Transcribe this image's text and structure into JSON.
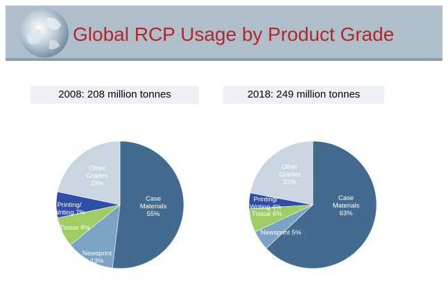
{
  "header": {
    "title": "Global RCP Usage by Product Grade",
    "background": "#aebfca",
    "title_color": "#b0282a"
  },
  "globe_icon": "globe-icon",
  "chart_data": [
    {
      "type": "pie",
      "title": "2008: 208 million tonnes",
      "slices": [
        {
          "label": "Case Materials",
          "value": 55,
          "display": "55%",
          "color": "#436a8f"
        },
        {
          "label": "Newsprint",
          "value": 13,
          "display": "13%",
          "color": "#7ba3c6"
        },
        {
          "label": "Tissue",
          "value": 8,
          "display": "8%",
          "color": "#9fcc64"
        },
        {
          "label": "Printing/ Writing",
          "value": 7,
          "display": "7%",
          "color": "#2f4ea7"
        },
        {
          "label": "Other Grades",
          "value": 23,
          "display": "23%",
          "color": "#c9d6e2"
        }
      ]
    },
    {
      "type": "pie",
      "title": "2018: 249 million tonnes",
      "slices": [
        {
          "label": "Case Materials",
          "value": 63,
          "display": "63%",
          "color": "#436a8f"
        },
        {
          "label": "Newsprint",
          "value": 5,
          "display": "5%",
          "color": "#7ba3c6"
        },
        {
          "label": "Tissue",
          "value": 6,
          "display": "6%",
          "color": "#9fcc64"
        },
        {
          "label": "Printing/ Writing",
          "value": 4,
          "display": "4%",
          "color": "#2f4ea7"
        },
        {
          "label": "Other Grades",
          "value": 22,
          "display": "22%",
          "color": "#c9d6e2"
        }
      ]
    }
  ]
}
